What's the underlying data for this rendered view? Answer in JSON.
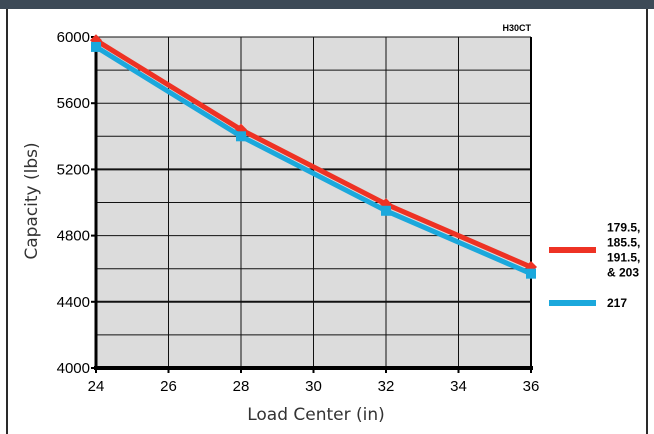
{
  "chart_data": {
    "type": "line",
    "title": "H30CT",
    "xlabel": "Load Center (in)",
    "ylabel": "Capacity (lbs)",
    "xlim": [
      24,
      36
    ],
    "ylim": [
      4000,
      6000
    ],
    "x_ticks": [
      "24",
      "26",
      "28",
      "30",
      "32",
      "34",
      "36"
    ],
    "y_ticks": [
      "4000",
      "4400",
      "4800",
      "5200",
      "5600",
      "6000"
    ],
    "grid": true,
    "legend_position": "right",
    "series": [
      {
        "name": "179.5, 185.5, 191.5, & 203",
        "name_lines": [
          "179.5,",
          "185.5,",
          "191.5,",
          "& 203"
        ],
        "color": "#ee3224",
        "x": [
          24,
          28,
          32,
          36
        ],
        "values": [
          5980,
          5440,
          4990,
          4610
        ]
      },
      {
        "name": "217",
        "name_lines": [
          "217"
        ],
        "color": "#1ba8dc",
        "x": [
          24,
          28,
          32,
          36
        ],
        "values": [
          5940,
          5400,
          4950,
          4570
        ]
      }
    ]
  }
}
